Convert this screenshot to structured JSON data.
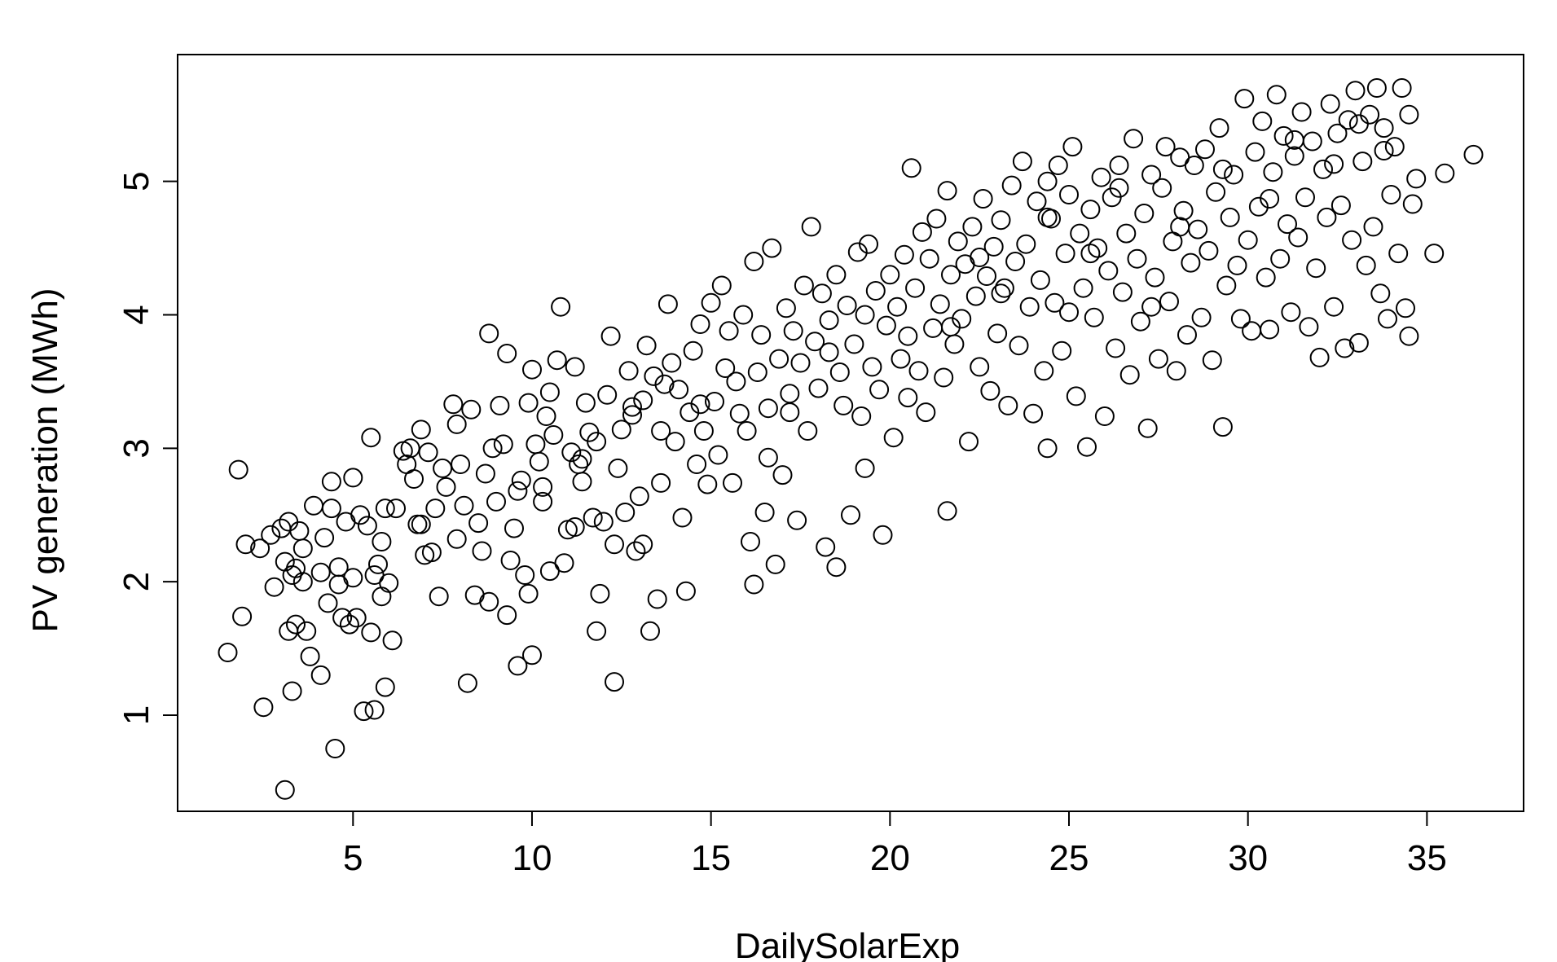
{
  "chart_data": {
    "type": "scatter",
    "title": "",
    "xlabel": "DailySolarExp",
    "ylabel": "PV generation (MWh)",
    "xlim": [
      0.1,
      37.7
    ],
    "ylim": [
      0.28,
      5.95
    ],
    "xticks": [
      5,
      10,
      15,
      20,
      25,
      30,
      35
    ],
    "yticks": [
      1,
      2,
      3,
      4,
      5
    ],
    "xtick_labels": [
      "5",
      "10",
      "15",
      "20",
      "25",
      "30",
      "35"
    ],
    "ytick_labels": [
      "1",
      "2",
      "3",
      "4",
      "5"
    ],
    "grid": false,
    "legend": "none",
    "marker": "open-circle",
    "color": "#000000",
    "points": [
      [
        1.5,
        1.47
      ],
      [
        1.8,
        2.84
      ],
      [
        1.9,
        1.74
      ],
      [
        2.0,
        2.28
      ],
      [
        2.4,
        2.25
      ],
      [
        2.5,
        1.06
      ],
      [
        2.7,
        2.35
      ],
      [
        2.8,
        1.96
      ],
      [
        3.0,
        2.4
      ],
      [
        3.1,
        2.15
      ],
      [
        3.1,
        0.44
      ],
      [
        3.2,
        2.45
      ],
      [
        3.2,
        1.63
      ],
      [
        3.3,
        2.05
      ],
      [
        3.3,
        1.18
      ],
      [
        3.4,
        2.1
      ],
      [
        3.4,
        1.68
      ],
      [
        3.5,
        2.38
      ],
      [
        3.6,
        2.25
      ],
      [
        3.6,
        2.0
      ],
      [
        3.7,
        1.63
      ],
      [
        3.8,
        1.44
      ],
      [
        3.9,
        2.57
      ],
      [
        4.1,
        1.3
      ],
      [
        4.1,
        2.07
      ],
      [
        4.2,
        2.33
      ],
      [
        4.3,
        1.84
      ],
      [
        4.4,
        2.75
      ],
      [
        4.4,
        2.55
      ],
      [
        4.5,
        0.75
      ],
      [
        4.6,
        2.11
      ],
      [
        4.6,
        1.98
      ],
      [
        4.7,
        1.73
      ],
      [
        4.8,
        2.45
      ],
      [
        4.9,
        1.68
      ],
      [
        5.0,
        2.03
      ],
      [
        5.0,
        2.78
      ],
      [
        5.1,
        1.73
      ],
      [
        5.2,
        2.5
      ],
      [
        5.3,
        1.03
      ],
      [
        5.4,
        2.42
      ],
      [
        5.5,
        1.62
      ],
      [
        5.5,
        3.08
      ],
      [
        5.6,
        1.04
      ],
      [
        5.6,
        2.05
      ],
      [
        5.7,
        2.13
      ],
      [
        5.8,
        2.3
      ],
      [
        5.9,
        2.55
      ],
      [
        5.9,
        1.21
      ],
      [
        6.0,
        1.99
      ],
      [
        6.1,
        1.56
      ],
      [
        6.2,
        2.55
      ],
      [
        6.4,
        2.98
      ],
      [
        6.5,
        2.88
      ],
      [
        6.6,
        3.0
      ],
      [
        6.7,
        2.77
      ],
      [
        6.8,
        2.43
      ],
      [
        6.9,
        3.14
      ],
      [
        7.0,
        2.2
      ],
      [
        7.1,
        2.97
      ],
      [
        7.2,
        2.22
      ],
      [
        7.3,
        2.55
      ],
      [
        7.4,
        1.89
      ],
      [
        7.5,
        2.85
      ],
      [
        7.6,
        2.71
      ],
      [
        7.8,
        3.33
      ],
      [
        7.9,
        3.18
      ],
      [
        8.0,
        2.88
      ],
      [
        8.1,
        2.57
      ],
      [
        8.2,
        1.24
      ],
      [
        8.3,
        3.29
      ],
      [
        8.4,
        1.9
      ],
      [
        8.5,
        2.44
      ],
      [
        8.6,
        2.23
      ],
      [
        8.7,
        2.81
      ],
      [
        8.8,
        3.86
      ],
      [
        8.9,
        3.0
      ],
      [
        9.0,
        2.6
      ],
      [
        9.1,
        3.32
      ],
      [
        9.2,
        3.03
      ],
      [
        9.3,
        3.71
      ],
      [
        9.3,
        1.75
      ],
      [
        9.4,
        2.16
      ],
      [
        9.5,
        2.4
      ],
      [
        9.6,
        1.37
      ],
      [
        9.7,
        2.76
      ],
      [
        9.8,
        2.05
      ],
      [
        9.9,
        3.34
      ],
      [
        9.9,
        1.91
      ],
      [
        10.0,
        3.59
      ],
      [
        10.0,
        1.45
      ],
      [
        10.1,
        3.03
      ],
      [
        10.2,
        2.9
      ],
      [
        10.3,
        2.71
      ],
      [
        10.4,
        3.24
      ],
      [
        10.5,
        2.08
      ],
      [
        10.5,
        3.42
      ],
      [
        10.6,
        3.1
      ],
      [
        10.7,
        3.66
      ],
      [
        10.8,
        4.06
      ],
      [
        10.9,
        2.14
      ],
      [
        11.0,
        2.39
      ],
      [
        11.1,
        2.97
      ],
      [
        11.2,
        3.61
      ],
      [
        11.3,
        2.88
      ],
      [
        11.4,
        2.75
      ],
      [
        11.5,
        3.34
      ],
      [
        11.6,
        3.12
      ],
      [
        11.7,
        2.48
      ],
      [
        11.8,
        1.63
      ],
      [
        11.8,
        3.05
      ],
      [
        11.9,
        1.91
      ],
      [
        12.0,
        2.45
      ],
      [
        12.1,
        3.4
      ],
      [
        12.2,
        3.84
      ],
      [
        12.3,
        1.25
      ],
      [
        12.3,
        2.28
      ],
      [
        12.4,
        2.85
      ],
      [
        12.5,
        3.14
      ],
      [
        12.6,
        2.52
      ],
      [
        12.7,
        3.58
      ],
      [
        12.8,
        3.25
      ],
      [
        12.9,
        2.23
      ],
      [
        13.0,
        2.64
      ],
      [
        13.1,
        2.28
      ],
      [
        13.2,
        3.77
      ],
      [
        13.3,
        1.63
      ],
      [
        13.4,
        3.54
      ],
      [
        13.5,
        1.87
      ],
      [
        13.6,
        2.74
      ],
      [
        13.7,
        3.48
      ],
      [
        13.8,
        4.08
      ],
      [
        13.9,
        3.64
      ],
      [
        14.0,
        3.05
      ],
      [
        14.1,
        3.44
      ],
      [
        14.2,
        2.48
      ],
      [
        14.3,
        1.93
      ],
      [
        14.4,
        3.27
      ],
      [
        14.5,
        3.73
      ],
      [
        14.6,
        2.88
      ],
      [
        14.7,
        3.93
      ],
      [
        14.8,
        3.13
      ],
      [
        15.0,
        4.09
      ],
      [
        15.1,
        3.35
      ],
      [
        15.2,
        2.95
      ],
      [
        15.3,
        4.22
      ],
      [
        15.4,
        3.6
      ],
      [
        15.5,
        3.88
      ],
      [
        15.6,
        2.74
      ],
      [
        15.7,
        3.5
      ],
      [
        15.8,
        3.26
      ],
      [
        15.9,
        4.0
      ],
      [
        16.0,
        3.13
      ],
      [
        16.1,
        2.3
      ],
      [
        16.2,
        4.4
      ],
      [
        16.2,
        1.98
      ],
      [
        16.3,
        3.57
      ],
      [
        16.4,
        3.85
      ],
      [
        16.5,
        2.52
      ],
      [
        16.6,
        3.3
      ],
      [
        16.7,
        4.5
      ],
      [
        16.8,
        2.13
      ],
      [
        16.9,
        3.67
      ],
      [
        17.0,
        2.8
      ],
      [
        17.1,
        4.05
      ],
      [
        17.2,
        3.41
      ],
      [
        17.3,
        3.88
      ],
      [
        17.4,
        2.46
      ],
      [
        17.5,
        3.64
      ],
      [
        17.6,
        4.22
      ],
      [
        17.7,
        3.13
      ],
      [
        17.8,
        4.66
      ],
      [
        17.9,
        3.8
      ],
      [
        18.0,
        3.45
      ],
      [
        18.1,
        4.16
      ],
      [
        18.2,
        2.26
      ],
      [
        18.3,
        3.72
      ],
      [
        18.5,
        2.11
      ],
      [
        18.5,
        4.3
      ],
      [
        18.6,
        3.57
      ],
      [
        18.7,
        3.32
      ],
      [
        18.8,
        4.07
      ],
      [
        18.9,
        2.5
      ],
      [
        19.0,
        3.78
      ],
      [
        19.1,
        4.47
      ],
      [
        19.2,
        3.24
      ],
      [
        19.3,
        4.0
      ],
      [
        19.4,
        4.53
      ],
      [
        19.5,
        3.61
      ],
      [
        19.6,
        4.18
      ],
      [
        19.7,
        3.44
      ],
      [
        19.8,
        2.35
      ],
      [
        19.9,
        3.92
      ],
      [
        20.0,
        4.3
      ],
      [
        20.1,
        3.08
      ],
      [
        20.2,
        4.06
      ],
      [
        20.3,
        3.67
      ],
      [
        20.4,
        4.45
      ],
      [
        20.5,
        3.84
      ],
      [
        20.6,
        5.1
      ],
      [
        20.7,
        4.2
      ],
      [
        20.8,
        3.58
      ],
      [
        20.9,
        4.62
      ],
      [
        21.0,
        3.27
      ],
      [
        21.1,
        4.42
      ],
      [
        21.2,
        3.9
      ],
      [
        21.3,
        4.72
      ],
      [
        21.4,
        4.08
      ],
      [
        21.5,
        3.53
      ],
      [
        21.6,
        2.53
      ],
      [
        21.6,
        4.93
      ],
      [
        21.7,
        4.3
      ],
      [
        21.8,
        3.78
      ],
      [
        21.9,
        4.55
      ],
      [
        22.0,
        3.97
      ],
      [
        22.1,
        4.38
      ],
      [
        22.2,
        3.05
      ],
      [
        22.3,
        4.66
      ],
      [
        22.4,
        4.14
      ],
      [
        22.5,
        3.61
      ],
      [
        22.6,
        4.87
      ],
      [
        22.7,
        4.29
      ],
      [
        22.8,
        3.43
      ],
      [
        22.9,
        4.51
      ],
      [
        23.0,
        3.86
      ],
      [
        23.1,
        4.71
      ],
      [
        23.2,
        4.2
      ],
      [
        23.3,
        3.32
      ],
      [
        23.4,
        4.97
      ],
      [
        23.5,
        4.4
      ],
      [
        23.6,
        3.77
      ],
      [
        23.7,
        5.15
      ],
      [
        23.8,
        4.53
      ],
      [
        23.9,
        4.06
      ],
      [
        24.0,
        3.26
      ],
      [
        24.1,
        4.85
      ],
      [
        24.2,
        4.26
      ],
      [
        24.3,
        3.58
      ],
      [
        24.4,
        5.0
      ],
      [
        24.4,
        3.0
      ],
      [
        24.5,
        4.72
      ],
      [
        24.6,
        4.09
      ],
      [
        24.7,
        5.12
      ],
      [
        24.8,
        3.73
      ],
      [
        24.9,
        4.46
      ],
      [
        25.0,
        4.9
      ],
      [
        25.0,
        4.02
      ],
      [
        25.1,
        5.26
      ],
      [
        25.2,
        3.39
      ],
      [
        25.3,
        4.61
      ],
      [
        25.4,
        4.2
      ],
      [
        25.5,
        3.01
      ],
      [
        25.6,
        4.79
      ],
      [
        25.7,
        3.98
      ],
      [
        25.8,
        4.5
      ],
      [
        25.9,
        5.03
      ],
      [
        26.0,
        3.24
      ],
      [
        26.1,
        4.33
      ],
      [
        26.2,
        4.88
      ],
      [
        26.3,
        3.75
      ],
      [
        26.4,
        5.12
      ],
      [
        26.5,
        4.17
      ],
      [
        26.6,
        4.61
      ],
      [
        26.7,
        3.55
      ],
      [
        26.8,
        5.32
      ],
      [
        26.9,
        4.42
      ],
      [
        27.0,
        3.95
      ],
      [
        27.1,
        4.76
      ],
      [
        27.2,
        3.15
      ],
      [
        27.3,
        5.05
      ],
      [
        27.4,
        4.28
      ],
      [
        27.5,
        3.67
      ],
      [
        27.6,
        4.95
      ],
      [
        27.7,
        5.26
      ],
      [
        27.8,
        4.1
      ],
      [
        27.9,
        4.55
      ],
      [
        28.0,
        3.58
      ],
      [
        28.1,
        5.18
      ],
      [
        28.2,
        4.78
      ],
      [
        28.3,
        3.85
      ],
      [
        28.4,
        4.39
      ],
      [
        28.5,
        5.12
      ],
      [
        28.6,
        4.64
      ],
      [
        28.7,
        3.98
      ],
      [
        28.8,
        5.24
      ],
      [
        28.9,
        4.48
      ],
      [
        29.0,
        3.66
      ],
      [
        29.1,
        4.92
      ],
      [
        29.2,
        5.4
      ],
      [
        29.3,
        3.16
      ],
      [
        29.4,
        4.22
      ],
      [
        29.5,
        4.73
      ],
      [
        29.6,
        5.05
      ],
      [
        29.7,
        4.37
      ],
      [
        29.8,
        3.97
      ],
      [
        29.9,
        5.62
      ],
      [
        30.0,
        4.56
      ],
      [
        30.1,
        3.88
      ],
      [
        30.2,
        5.22
      ],
      [
        30.3,
        4.81
      ],
      [
        30.4,
        5.45
      ],
      [
        30.5,
        4.28
      ],
      [
        30.6,
        3.89
      ],
      [
        30.7,
        5.07
      ],
      [
        30.8,
        5.65
      ],
      [
        30.9,
        4.42
      ],
      [
        31.0,
        5.34
      ],
      [
        31.1,
        4.68
      ],
      [
        31.2,
        4.02
      ],
      [
        31.3,
        5.19
      ],
      [
        31.4,
        4.58
      ],
      [
        31.5,
        5.52
      ],
      [
        31.6,
        4.88
      ],
      [
        31.7,
        3.91
      ],
      [
        31.8,
        5.3
      ],
      [
        31.9,
        4.35
      ],
      [
        32.0,
        3.68
      ],
      [
        32.1,
        5.09
      ],
      [
        32.2,
        4.73
      ],
      [
        32.3,
        5.58
      ],
      [
        32.4,
        4.06
      ],
      [
        32.5,
        5.36
      ],
      [
        32.6,
        4.82
      ],
      [
        32.7,
        3.75
      ],
      [
        32.8,
        5.46
      ],
      [
        32.9,
        4.56
      ],
      [
        33.0,
        5.68
      ],
      [
        33.1,
        3.79
      ],
      [
        33.2,
        5.15
      ],
      [
        33.3,
        4.37
      ],
      [
        33.4,
        5.5
      ],
      [
        33.5,
        4.66
      ],
      [
        33.6,
        5.7
      ],
      [
        33.7,
        4.16
      ],
      [
        33.8,
        5.4
      ],
      [
        33.9,
        3.97
      ],
      [
        34.0,
        4.9
      ],
      [
        34.1,
        5.26
      ],
      [
        34.2,
        4.46
      ],
      [
        34.3,
        5.7
      ],
      [
        34.4,
        4.05
      ],
      [
        34.5,
        5.5
      ],
      [
        34.5,
        3.84
      ],
      [
        34.6,
        4.83
      ],
      [
        34.7,
        5.02
      ],
      [
        35.2,
        4.46
      ],
      [
        35.5,
        5.06
      ],
      [
        36.3,
        5.2
      ],
      [
        6.9,
        2.43
      ],
      [
        8.8,
        1.85
      ],
      [
        10.3,
        2.6
      ],
      [
        11.4,
        2.92
      ],
      [
        12.8,
        3.31
      ],
      [
        13.6,
        3.13
      ],
      [
        14.9,
        2.73
      ],
      [
        16.6,
        2.93
      ],
      [
        17.2,
        3.27
      ],
      [
        18.3,
        3.96
      ],
      [
        19.3,
        2.85
      ],
      [
        20.5,
        3.38
      ],
      [
        21.7,
        3.91
      ],
      [
        22.5,
        4.43
      ],
      [
        23.1,
        4.16
      ],
      [
        24.4,
        4.73
      ],
      [
        25.6,
        4.46
      ],
      [
        26.4,
        4.95
      ],
      [
        27.3,
        4.06
      ],
      [
        28.1,
        4.66
      ],
      [
        29.3,
        5.09
      ],
      [
        30.6,
        4.87
      ],
      [
        31.3,
        5.31
      ],
      [
        32.4,
        5.13
      ],
      [
        33.1,
        5.43
      ],
      [
        33.8,
        5.23
      ],
      [
        5.8,
        1.89
      ],
      [
        7.9,
        2.32
      ],
      [
        9.6,
        2.68
      ],
      [
        11.2,
        2.41
      ],
      [
        13.1,
        3.36
      ],
      [
        14.7,
        3.33
      ]
    ]
  }
}
